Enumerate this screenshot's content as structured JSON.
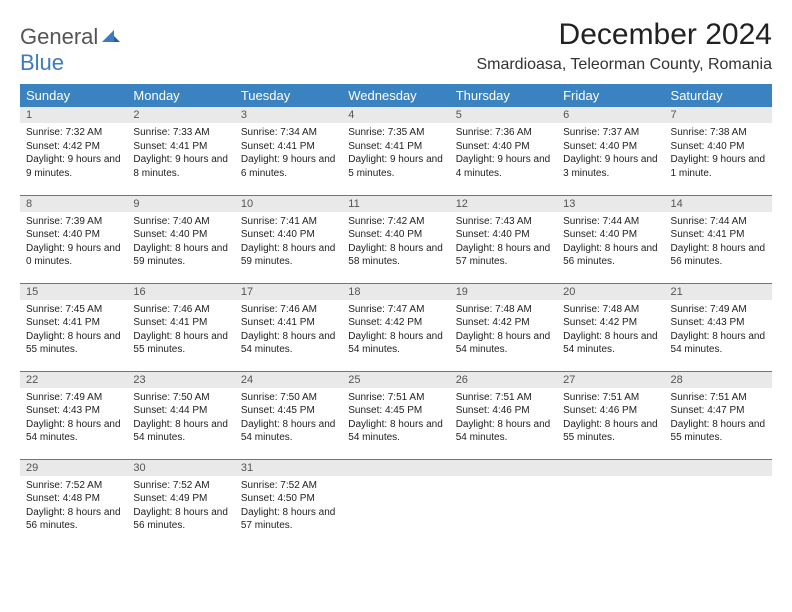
{
  "brand": {
    "text1": "General",
    "text2": "Blue"
  },
  "title": "December 2024",
  "location": "Smardioasa, Teleorman County, Romania",
  "colors": {
    "header_bg": "#3b83c0",
    "header_fg": "#ffffff",
    "daynum_bg": "#e9e9e9",
    "row_border": "#3b83c0",
    "logo_gray": "#555555",
    "logo_blue": "#3b7bbf"
  },
  "weekdays": [
    "Sunday",
    "Monday",
    "Tuesday",
    "Wednesday",
    "Thursday",
    "Friday",
    "Saturday"
  ],
  "weeks": [
    [
      {
        "n": "1",
        "sr": "7:32 AM",
        "ss": "4:42 PM",
        "dl": "9 hours and 9 minutes."
      },
      {
        "n": "2",
        "sr": "7:33 AM",
        "ss": "4:41 PM",
        "dl": "9 hours and 8 minutes."
      },
      {
        "n": "3",
        "sr": "7:34 AM",
        "ss": "4:41 PM",
        "dl": "9 hours and 6 minutes."
      },
      {
        "n": "4",
        "sr": "7:35 AM",
        "ss": "4:41 PM",
        "dl": "9 hours and 5 minutes."
      },
      {
        "n": "5",
        "sr": "7:36 AM",
        "ss": "4:40 PM",
        "dl": "9 hours and 4 minutes."
      },
      {
        "n": "6",
        "sr": "7:37 AM",
        "ss": "4:40 PM",
        "dl": "9 hours and 3 minutes."
      },
      {
        "n": "7",
        "sr": "7:38 AM",
        "ss": "4:40 PM",
        "dl": "9 hours and 1 minute."
      }
    ],
    [
      {
        "n": "8",
        "sr": "7:39 AM",
        "ss": "4:40 PM",
        "dl": "9 hours and 0 minutes."
      },
      {
        "n": "9",
        "sr": "7:40 AM",
        "ss": "4:40 PM",
        "dl": "8 hours and 59 minutes."
      },
      {
        "n": "10",
        "sr": "7:41 AM",
        "ss": "4:40 PM",
        "dl": "8 hours and 59 minutes."
      },
      {
        "n": "11",
        "sr": "7:42 AM",
        "ss": "4:40 PM",
        "dl": "8 hours and 58 minutes."
      },
      {
        "n": "12",
        "sr": "7:43 AM",
        "ss": "4:40 PM",
        "dl": "8 hours and 57 minutes."
      },
      {
        "n": "13",
        "sr": "7:44 AM",
        "ss": "4:40 PM",
        "dl": "8 hours and 56 minutes."
      },
      {
        "n": "14",
        "sr": "7:44 AM",
        "ss": "4:41 PM",
        "dl": "8 hours and 56 minutes."
      }
    ],
    [
      {
        "n": "15",
        "sr": "7:45 AM",
        "ss": "4:41 PM",
        "dl": "8 hours and 55 minutes."
      },
      {
        "n": "16",
        "sr": "7:46 AM",
        "ss": "4:41 PM",
        "dl": "8 hours and 55 minutes."
      },
      {
        "n": "17",
        "sr": "7:46 AM",
        "ss": "4:41 PM",
        "dl": "8 hours and 54 minutes."
      },
      {
        "n": "18",
        "sr": "7:47 AM",
        "ss": "4:42 PM",
        "dl": "8 hours and 54 minutes."
      },
      {
        "n": "19",
        "sr": "7:48 AM",
        "ss": "4:42 PM",
        "dl": "8 hours and 54 minutes."
      },
      {
        "n": "20",
        "sr": "7:48 AM",
        "ss": "4:42 PM",
        "dl": "8 hours and 54 minutes."
      },
      {
        "n": "21",
        "sr": "7:49 AM",
        "ss": "4:43 PM",
        "dl": "8 hours and 54 minutes."
      }
    ],
    [
      {
        "n": "22",
        "sr": "7:49 AM",
        "ss": "4:43 PM",
        "dl": "8 hours and 54 minutes."
      },
      {
        "n": "23",
        "sr": "7:50 AM",
        "ss": "4:44 PM",
        "dl": "8 hours and 54 minutes."
      },
      {
        "n": "24",
        "sr": "7:50 AM",
        "ss": "4:45 PM",
        "dl": "8 hours and 54 minutes."
      },
      {
        "n": "25",
        "sr": "7:51 AM",
        "ss": "4:45 PM",
        "dl": "8 hours and 54 minutes."
      },
      {
        "n": "26",
        "sr": "7:51 AM",
        "ss": "4:46 PM",
        "dl": "8 hours and 54 minutes."
      },
      {
        "n": "27",
        "sr": "7:51 AM",
        "ss": "4:46 PM",
        "dl": "8 hours and 55 minutes."
      },
      {
        "n": "28",
        "sr": "7:51 AM",
        "ss": "4:47 PM",
        "dl": "8 hours and 55 minutes."
      }
    ],
    [
      {
        "n": "29",
        "sr": "7:52 AM",
        "ss": "4:48 PM",
        "dl": "8 hours and 56 minutes."
      },
      {
        "n": "30",
        "sr": "7:52 AM",
        "ss": "4:49 PM",
        "dl": "8 hours and 56 minutes."
      },
      {
        "n": "31",
        "sr": "7:52 AM",
        "ss": "4:50 PM",
        "dl": "8 hours and 57 minutes."
      },
      null,
      null,
      null,
      null
    ]
  ],
  "labels": {
    "sunrise": "Sunrise:",
    "sunset": "Sunset:",
    "daylight": "Daylight:"
  }
}
